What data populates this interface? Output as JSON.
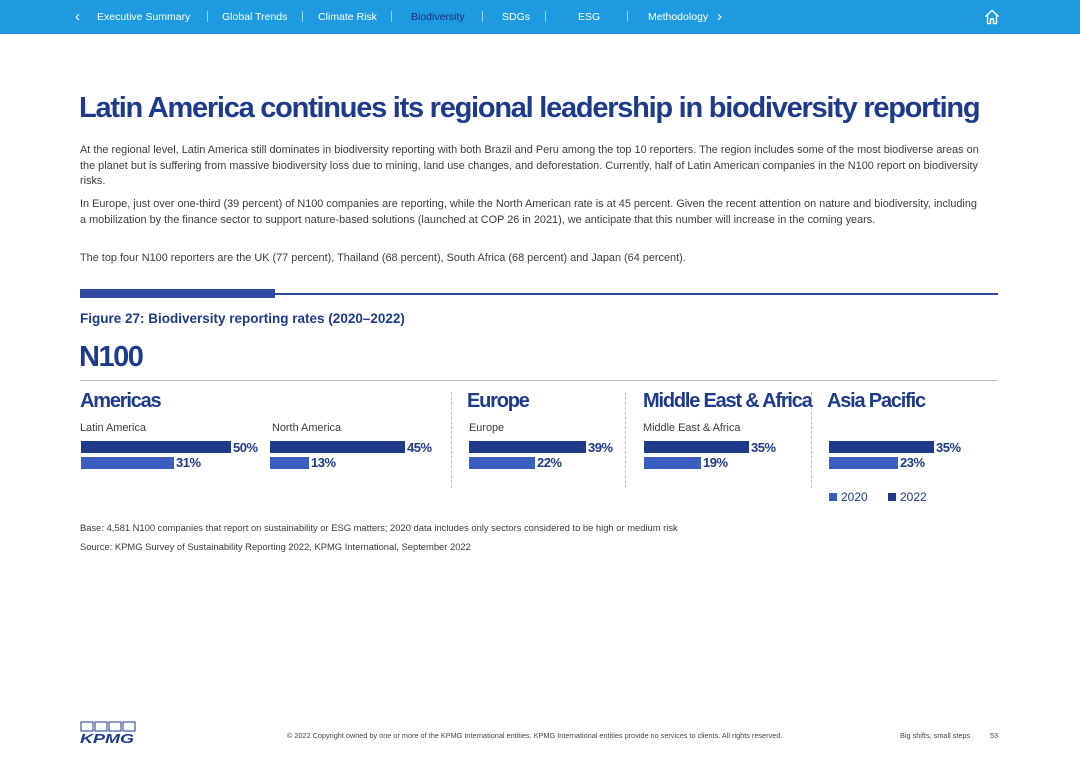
{
  "nav": {
    "tabs": [
      {
        "label": "Executive Summary",
        "active": false
      },
      {
        "label": "Global Trends",
        "active": false
      },
      {
        "label": "Climate Risk",
        "active": false
      },
      {
        "label": "Biodiversity",
        "active": true
      },
      {
        "label": "SDGs",
        "active": false
      },
      {
        "label": "ESG",
        "active": false
      },
      {
        "label": "Methodology",
        "active": false
      }
    ]
  },
  "headline": "Latin America continues its regional leadership in biodiversity reporting",
  "paragraphs": [
    "At the regional level, Latin America still dominates in biodiversity reporting with both Brazil and Peru among the top 10 reporters. The region includes some of the most biodiverse areas on the planet but is suffering from massive biodiversity loss due to mining, land use changes, and deforestation. Currently, half of Latin American companies in the N100 report on biodiversity risks.",
    "In Europe, just over one-third (39 percent) of N100 companies are reporting, while the North American rate is at 45 percent. Given the recent attention on nature and biodiversity, including a mobilization by the finance sector to support nature-based solutions (launched at COP 26 in 2021), we anticipate that this number will increase in the coming years.",
    "The top four N100 reporters are the UK (77 percent), Thailand (68 percent), South Africa (68 percent) and Japan (64 percent)."
  ],
  "figure_title": "Figure 27: Biodiversity reporting rates (2020–2022)",
  "chart_heading": "N100",
  "chart_data": {
    "type": "bar",
    "orientation": "horizontal",
    "title": "Figure 27: Biodiversity reporting rates (2020–2022)",
    "subtitle": "N100",
    "groups": [
      {
        "heading": "Americas",
        "label": "Latin America",
        "values": {
          "2022": 50,
          "2020": 31
        }
      },
      {
        "heading": "",
        "label": "North America",
        "values": {
          "2022": 45,
          "2020": 13
        }
      },
      {
        "heading": "Europe",
        "label": "Europe",
        "values": {
          "2022": 39,
          "2020": 22
        }
      },
      {
        "heading": "Middle East & Africa",
        "label": "Middle East & Africa",
        "values": {
          "2022": 35,
          "2020": 19
        }
      },
      {
        "heading": "Asia Pacific",
        "label": "",
        "values": {
          "2022": 35,
          "2020": 23
        }
      }
    ],
    "series": [
      {
        "name": "2020",
        "values": [
          31,
          13,
          22,
          19,
          23
        ]
      },
      {
        "name": "2022",
        "values": [
          50,
          45,
          39,
          35,
          35
        ]
      }
    ],
    "unit": "%",
    "xlim": [
      0,
      50
    ],
    "legend": [
      "2020",
      "2022"
    ],
    "legend_position": "bottom-right"
  },
  "colors": {
    "nav_bg": "#1e9be0",
    "primary": "#1e3a8a",
    "bar_2022": "#1e3a8a",
    "bar_2020": "#3b5fc0"
  },
  "notes": {
    "base": "Base: 4,581 N100 companies that report on sustainability or ESG matters; 2020 data includes only sectors considered to be high or medium risk",
    "source": "Source: KPMG Survey of Sustainability Reporting 2022, KPMG International, September 2022"
  },
  "footer": {
    "logo": "KPMG",
    "copyright": "© 2022 Copyright owned by one or more of the KPMG International entities. KPMG International entities provide no services to clients. All rights reserved.",
    "tagline": "Big shifts, small steps",
    "page": "53"
  }
}
